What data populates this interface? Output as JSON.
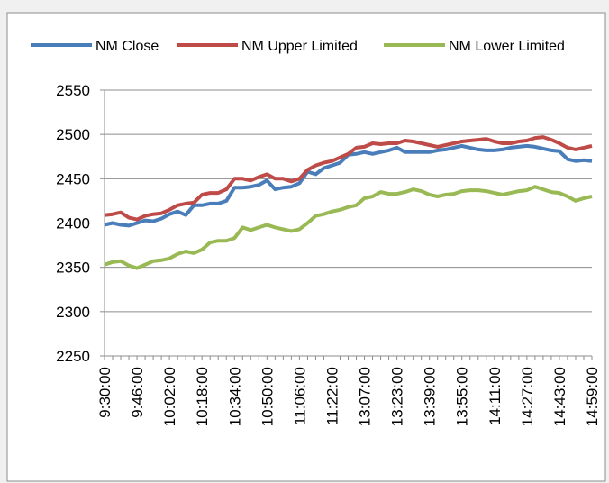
{
  "chart_data": {
    "type": "line",
    "categories": [
      "9:30:00",
      null,
      null,
      null,
      "9:46:00",
      null,
      null,
      null,
      "10:02:00",
      null,
      null,
      null,
      "10:18:00",
      null,
      null,
      null,
      "10:34:00",
      null,
      null,
      null,
      "10:50:00",
      null,
      null,
      null,
      "11:06:00",
      null,
      null,
      null,
      "11:22:00",
      null,
      null,
      null,
      "13:07:00",
      null,
      null,
      null,
      "13:23:00",
      null,
      null,
      null,
      "13:39:00",
      null,
      null,
      null,
      "13:55:00",
      null,
      null,
      null,
      "14:11:00",
      null,
      null,
      null,
      "14:27:00",
      null,
      null,
      null,
      "14:43:00",
      null,
      null,
      null,
      "14:59:00"
    ],
    "series": [
      {
        "name": "NM Close",
        "color": "#4a7ebb",
        "values": [
          2398,
          2400,
          2398,
          2397,
          2400,
          2403,
          2402,
          2405,
          2410,
          2413,
          2409,
          2420,
          2420,
          2422,
          2422,
          2425,
          2440,
          2440,
          2441,
          2443,
          2448,
          2438,
          2440,
          2441,
          2445,
          2458,
          2455,
          2462,
          2465,
          2468,
          2477,
          2478,
          2480,
          2478,
          2480,
          2482,
          2485,
          2480,
          2480,
          2480,
          2480,
          2482,
          2483,
          2485,
          2487,
          2485,
          2483,
          2482,
          2482,
          2483,
          2485,
          2486,
          2487,
          2486,
          2484,
          2482,
          2481,
          2472,
          2470,
          2471,
          2470
        ]
      },
      {
        "name": "NM Upper Limited",
        "color": "#be4b48",
        "values": [
          2409,
          2410,
          2412,
          2406,
          2404,
          2408,
          2410,
          2411,
          2415,
          2420,
          2422,
          2423,
          2432,
          2434,
          2434,
          2438,
          2450,
          2450,
          2448,
          2452,
          2455,
          2450,
          2450,
          2447,
          2450,
          2460,
          2465,
          2468,
          2470,
          2474,
          2478,
          2485,
          2486,
          2490,
          2489,
          2490,
          2490,
          2493,
          2492,
          2490,
          2488,
          2486,
          2488,
          2490,
          2492,
          2493,
          2494,
          2495,
          2492,
          2490,
          2490,
          2492,
          2493,
          2496,
          2497,
          2494,
          2490,
          2485,
          2483,
          2485,
          2487
        ]
      },
      {
        "name": "NM Lower Limited",
        "color": "#98b954",
        "values": [
          2353,
          2356,
          2357,
          2352,
          2349,
          2353,
          2357,
          2358,
          2360,
          2365,
          2368,
          2366,
          2370,
          2378,
          2380,
          2380,
          2383,
          2395,
          2392,
          2395,
          2398,
          2395,
          2393,
          2391,
          2393,
          2400,
          2408,
          2410,
          2413,
          2415,
          2418,
          2420,
          2428,
          2430,
          2435,
          2433,
          2433,
          2435,
          2438,
          2436,
          2432,
          2430,
          2432,
          2433,
          2436,
          2437,
          2437,
          2436,
          2434,
          2432,
          2434,
          2436,
          2437,
          2441,
          2438,
          2435,
          2434,
          2430,
          2425,
          2428,
          2430
        ]
      }
    ],
    "ylim": [
      2250,
      2550
    ],
    "yticks": [
      2250,
      2300,
      2350,
      2400,
      2450,
      2500,
      2550
    ],
    "grid": true,
    "legend_position": "top"
  }
}
